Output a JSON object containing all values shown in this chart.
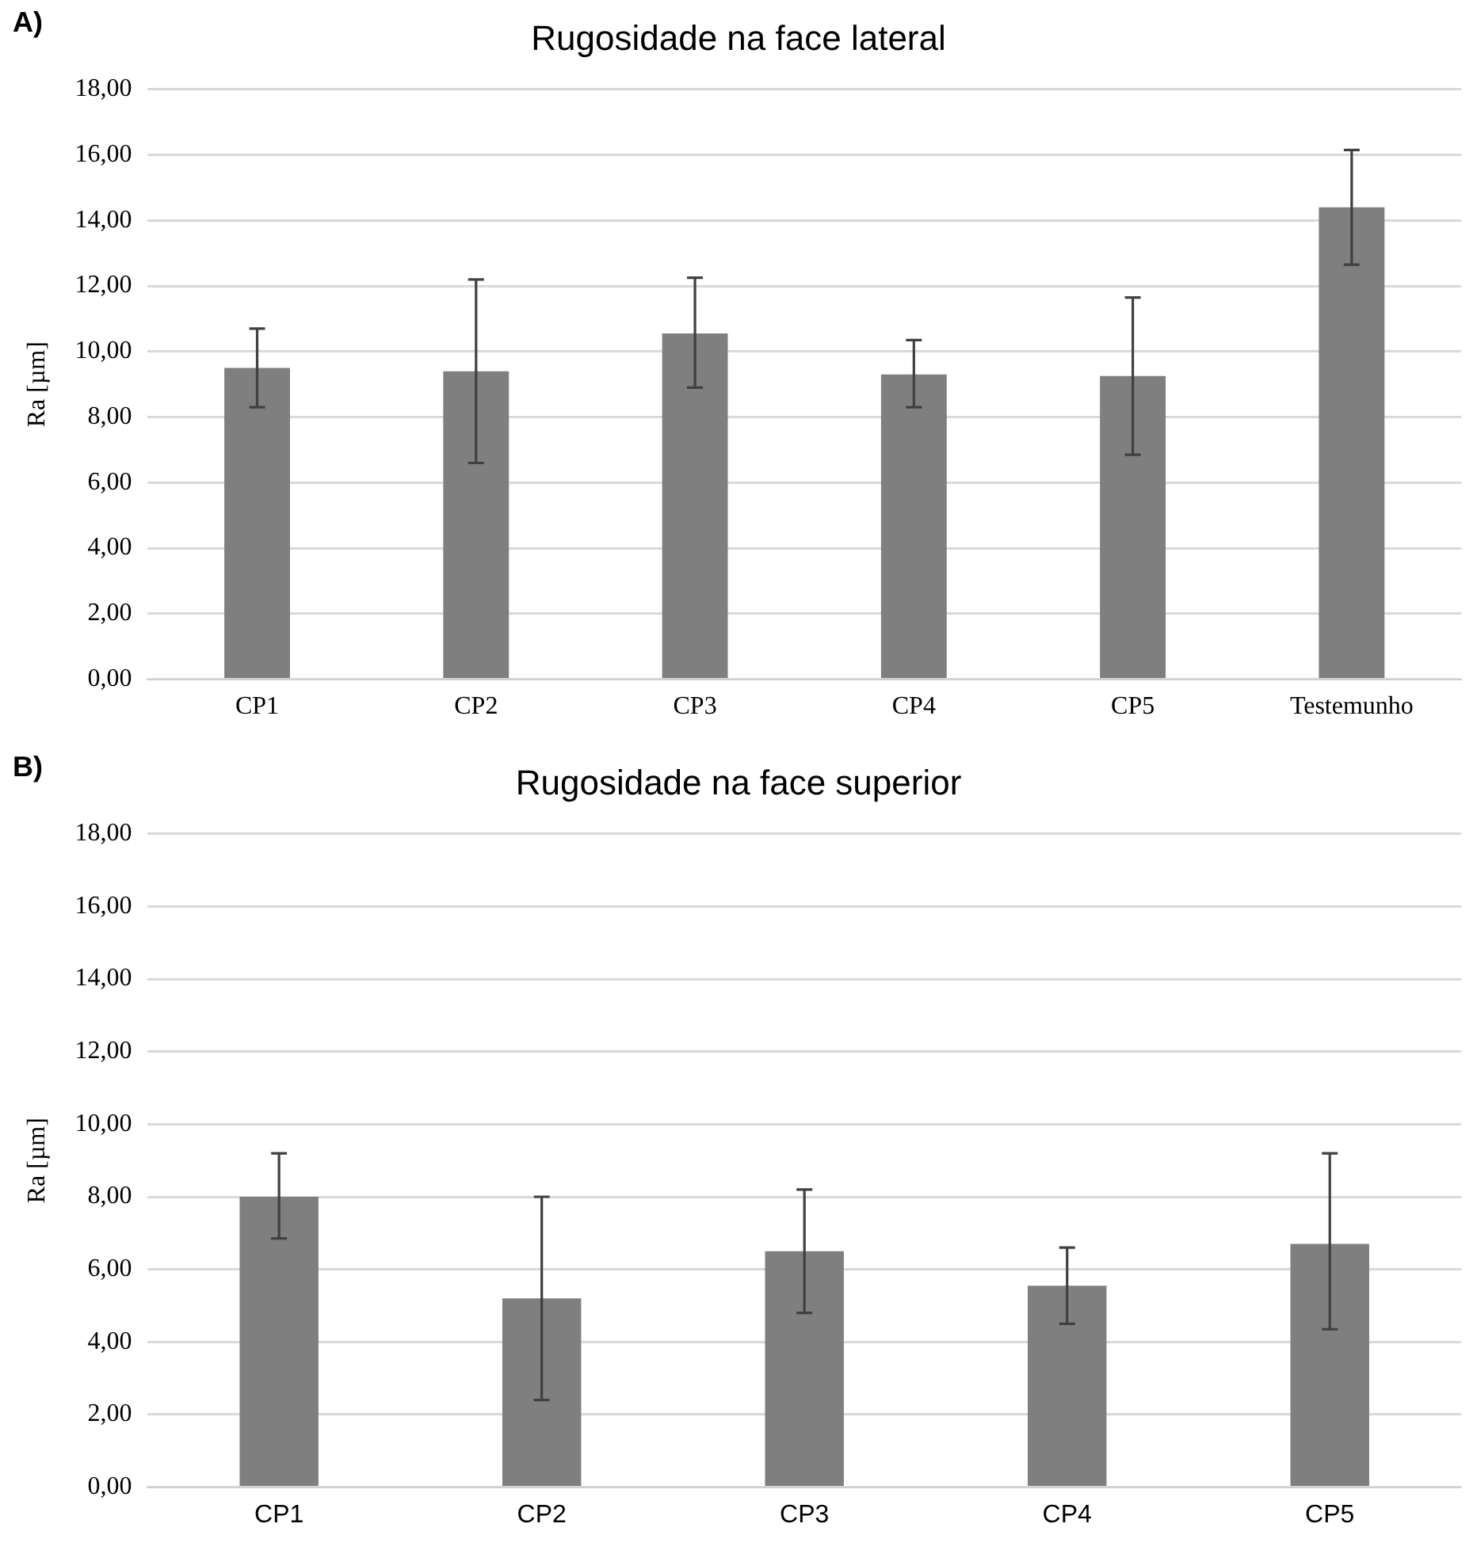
{
  "chart_data": [
    {
      "type": "bar",
      "title": "Rugosidade na face lateral",
      "ylabel": "Ra [µm]",
      "annotations": [
        "A)"
      ],
      "categories": [
        "CP1",
        "CP2",
        "CP3",
        "CP4",
        "CP5",
        "Testemunho"
      ],
      "series": [
        {
          "color": "#7f7f7f",
          "values": [
            9.5,
            9.4,
            10.55,
            9.3,
            9.25,
            14.4
          ],
          "errors": [
            [
              8.3,
              10.7
            ],
            [
              6.6,
              12.2
            ],
            [
              8.9,
              12.25
            ],
            [
              8.3,
              10.35
            ],
            [
              6.85,
              11.65
            ],
            [
              12.65,
              16.15
            ]
          ]
        }
      ],
      "ylim": [
        0,
        18
      ],
      "yticks": [
        {
          "value": 0,
          "label": "0,00"
        },
        {
          "value": 2,
          "label": "2,00"
        },
        {
          "value": 4,
          "label": "4,00"
        },
        {
          "value": 6,
          "label": "6,00"
        },
        {
          "value": 8,
          "label": "8,00"
        },
        {
          "value": 10,
          "label": "10,00"
        },
        {
          "value": 12,
          "label": "12,00"
        },
        {
          "value": 14,
          "label": "14,00"
        },
        {
          "value": 16,
          "label": "16,00"
        },
        {
          "value": 18,
          "label": "18,00"
        }
      ],
      "grid": "y",
      "legend": false
    },
    {
      "type": "bar",
      "title": "Rugosidade na face superior",
      "ylabel": "Ra [µm]",
      "annotations": [
        "B)"
      ],
      "categories": [
        "CP1",
        "CP2",
        "CP3",
        "CP4",
        "CP5"
      ],
      "series": [
        {
          "color": "#7f7f7f",
          "values": [
            8.0,
            5.2,
            6.5,
            5.55,
            6.7
          ],
          "errors": [
            [
              6.85,
              9.2
            ],
            [
              2.4,
              8.0
            ],
            [
              4.8,
              8.2
            ],
            [
              4.5,
              6.6
            ],
            [
              4.35,
              9.2
            ]
          ]
        }
      ],
      "ylim": [
        0,
        18
      ],
      "yticks": [
        {
          "value": 0,
          "label": "0,00"
        },
        {
          "value": 2,
          "label": "2,00"
        },
        {
          "value": 4,
          "label": "4,00"
        },
        {
          "value": 6,
          "label": "6,00"
        },
        {
          "value": 8,
          "label": "8,00"
        },
        {
          "value": 10,
          "label": "10,00"
        },
        {
          "value": 12,
          "label": "12,00"
        },
        {
          "value": 14,
          "label": "14,00"
        },
        {
          "value": 16,
          "label": "16,00"
        },
        {
          "value": 18,
          "label": "18,00"
        }
      ],
      "grid": "y",
      "legend": false
    }
  ]
}
